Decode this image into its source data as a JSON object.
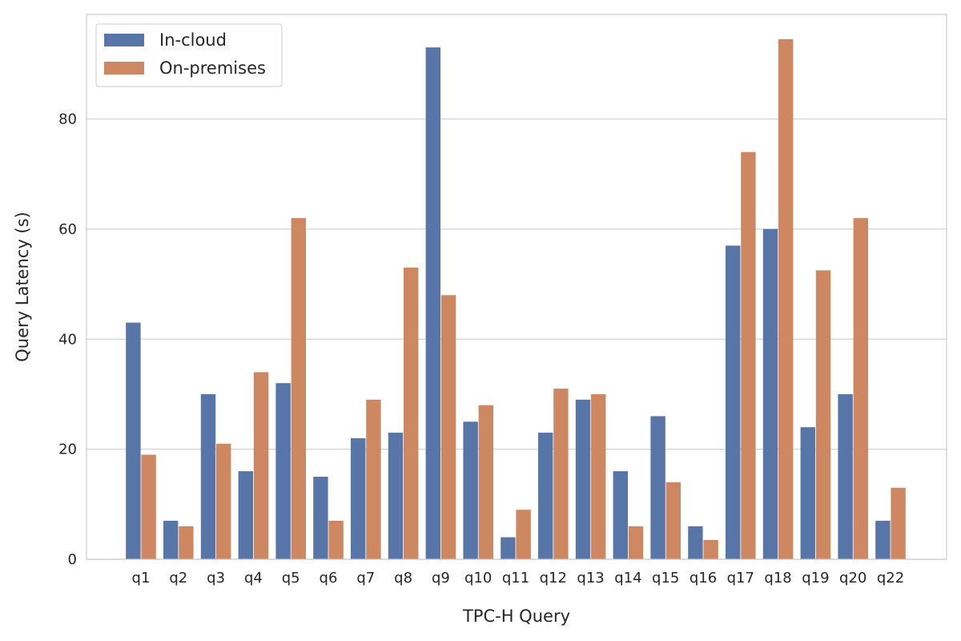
{
  "chart_data": {
    "type": "bar",
    "title": "",
    "xlabel": "TPC-H Query",
    "ylabel": "Query Latency (s)",
    "categories": [
      "q1",
      "q2",
      "q3",
      "q4",
      "q5",
      "q6",
      "q7",
      "q8",
      "q9",
      "q10",
      "q11",
      "q12",
      "q13",
      "q14",
      "q15",
      "q16",
      "q17",
      "q18",
      "q19",
      "q20",
      "q22"
    ],
    "series": [
      {
        "name": "In-cloud",
        "color": "#5875a8",
        "values": [
          43,
          7,
          30,
          16,
          32,
          15,
          22,
          23,
          93,
          25,
          4,
          23,
          29,
          16,
          26,
          6,
          57,
          60,
          24,
          30,
          7
        ]
      },
      {
        "name": "On-premises",
        "color": "#cd8862",
        "values": [
          19,
          6,
          21,
          34,
          62,
          7,
          29,
          53,
          48,
          28,
          9,
          31,
          30,
          6,
          14,
          3.5,
          74,
          94.5,
          52.5,
          62,
          13
        ]
      }
    ],
    "ylim": [
      0,
      99
    ],
    "yticks": [
      0,
      20,
      40,
      60,
      80
    ],
    "grid": true,
    "legend_position": "top-left"
  }
}
